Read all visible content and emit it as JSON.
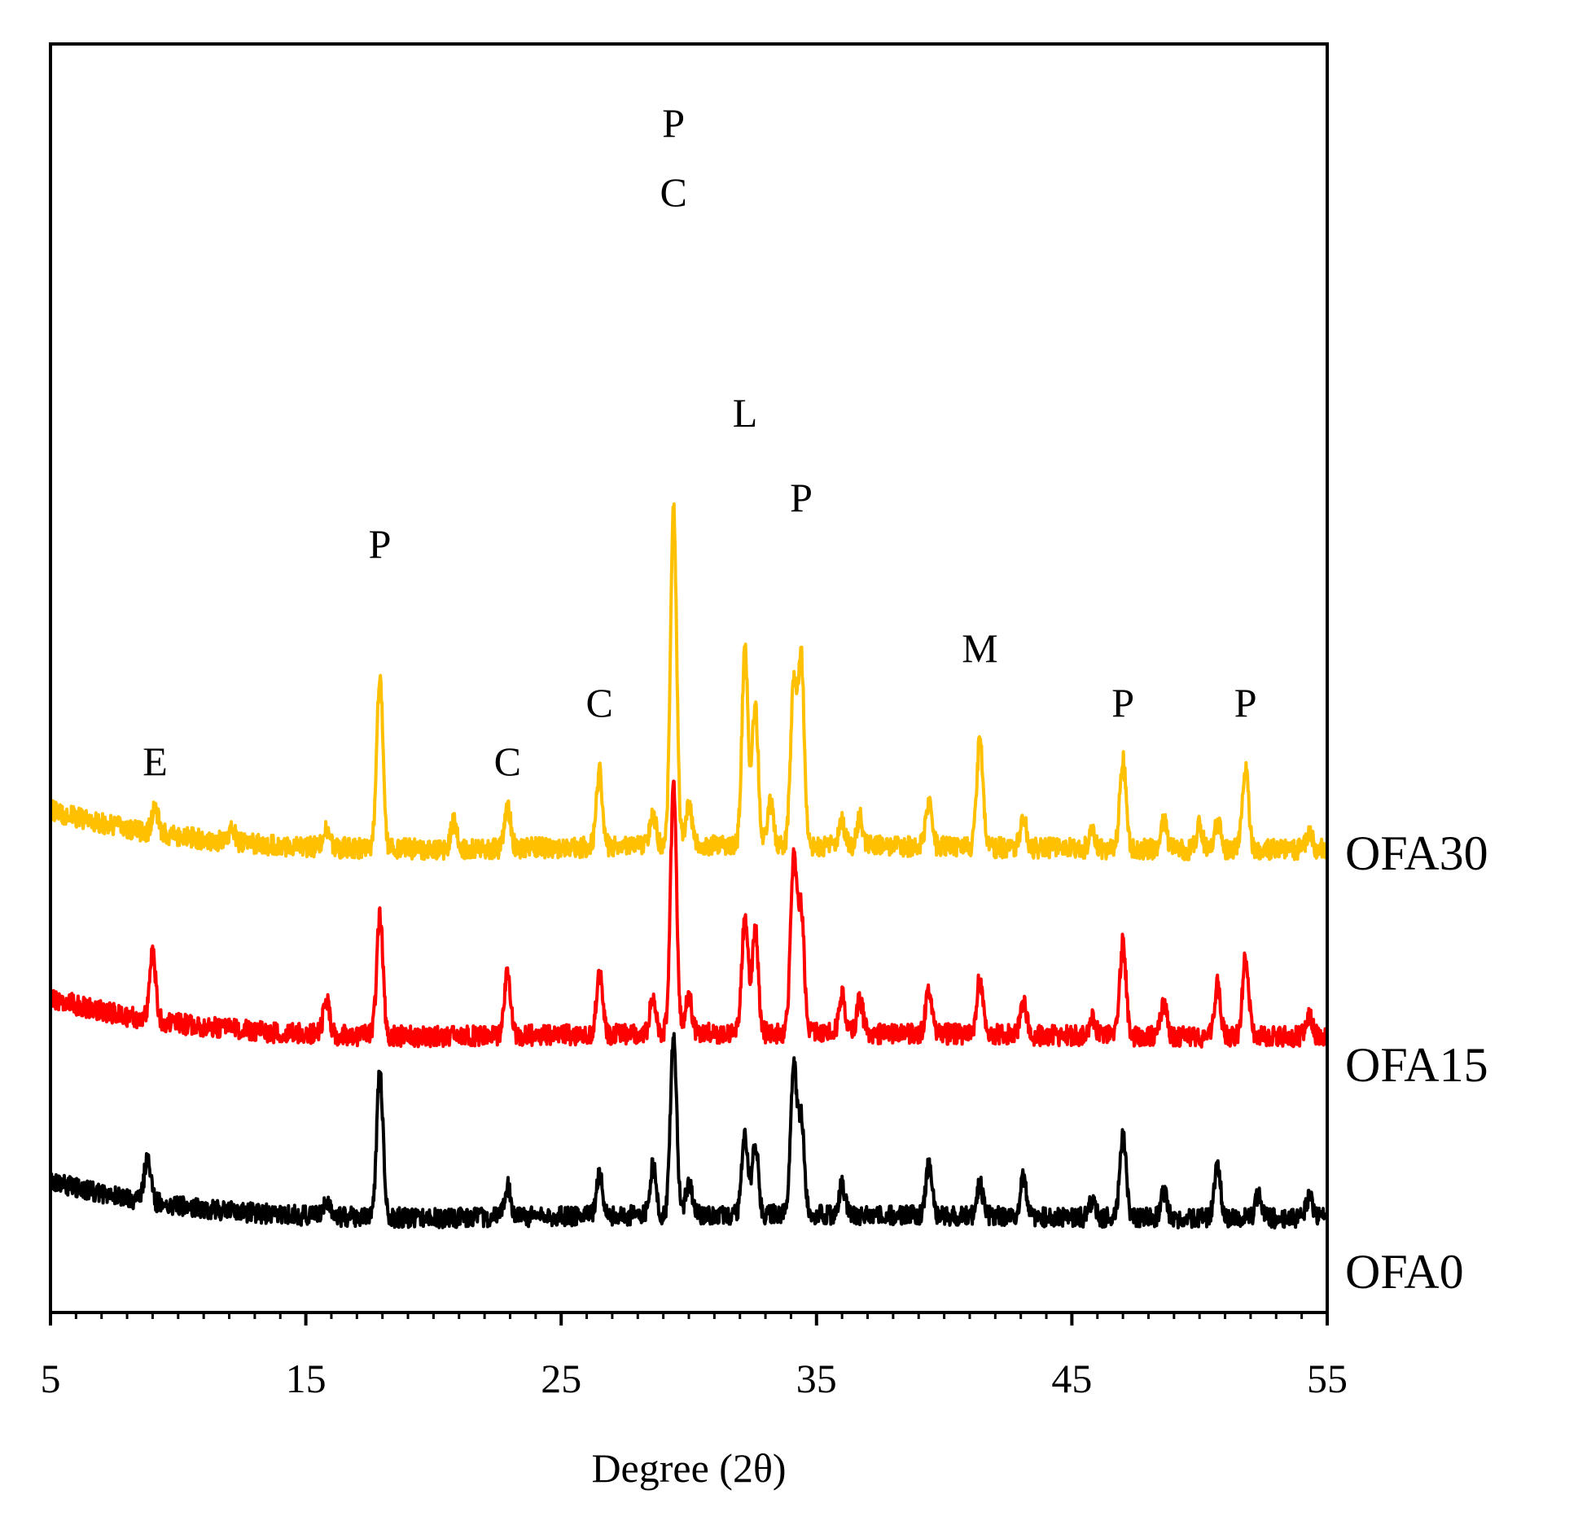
{
  "chart_data": {
    "type": "line",
    "title": "",
    "xlabel": "Degree (2θ)",
    "ylabel": "",
    "xlim": [
      5,
      55
    ],
    "xticks": [
      "5",
      "15",
      "25",
      "35",
      "45",
      "55"
    ],
    "y_axis_ticks_shown": false,
    "grid": false,
    "legend": "none (series names printed at right end of each trace)",
    "series": [
      {
        "name": "OFA30",
        "color": "#FFC000",
        "baseline": [
          [
            5,
            1.0
          ],
          [
            6,
            0.92
          ],
          [
            8,
            0.8
          ],
          [
            10,
            0.72
          ],
          [
            12,
            0.66
          ],
          [
            14,
            0.62
          ],
          [
            16,
            0.6
          ],
          [
            20,
            0.58
          ],
          [
            25,
            0.6
          ],
          [
            30,
            0.62
          ],
          [
            35,
            0.62
          ],
          [
            40,
            0.61
          ],
          [
            45,
            0.59
          ],
          [
            50,
            0.58
          ],
          [
            55,
            0.58
          ]
        ],
        "peaks": [
          [
            9.1,
            0.25
          ],
          [
            12.1,
            0.15
          ],
          [
            15.8,
            0.18
          ],
          [
            17.9,
            1.85
          ],
          [
            20.8,
            0.3
          ],
          [
            22.9,
            0.45
          ],
          [
            26.5,
            0.8
          ],
          [
            28.6,
            0.35
          ],
          [
            29.4,
            3.6
          ],
          [
            30.0,
            0.45
          ],
          [
            32.2,
            2.1
          ],
          [
            32.6,
            1.5
          ],
          [
            33.2,
            0.45
          ],
          [
            34.1,
            1.7
          ],
          [
            34.4,
            2.0
          ],
          [
            36.0,
            0.25
          ],
          [
            36.7,
            0.3
          ],
          [
            39.4,
            0.45
          ],
          [
            41.4,
            1.15
          ],
          [
            43.1,
            0.35
          ],
          [
            45.8,
            0.2
          ],
          [
            47.0,
            0.95
          ],
          [
            48.6,
            0.3
          ],
          [
            50.0,
            0.25
          ],
          [
            50.7,
            0.3
          ],
          [
            51.8,
            0.85
          ],
          [
            54.3,
            0.2
          ]
        ]
      },
      {
        "name": "OFA15",
        "color": "#FF0000",
        "baseline": [
          [
            5,
            1.0
          ],
          [
            6,
            0.92
          ],
          [
            8,
            0.8
          ],
          [
            10,
            0.72
          ],
          [
            12,
            0.66
          ],
          [
            14,
            0.62
          ],
          [
            16,
            0.6
          ],
          [
            20,
            0.58
          ],
          [
            25,
            0.6
          ],
          [
            30,
            0.62
          ],
          [
            35,
            0.62
          ],
          [
            40,
            0.61
          ],
          [
            45,
            0.59
          ],
          [
            50,
            0.58
          ],
          [
            55,
            0.58
          ]
        ],
        "peaks": [
          [
            9.0,
            0.7
          ],
          [
            15.8,
            0.38
          ],
          [
            17.9,
            1.3
          ],
          [
            22.9,
            0.65
          ],
          [
            26.5,
            0.65
          ],
          [
            28.6,
            0.4
          ],
          [
            29.4,
            2.65
          ],
          [
            30.0,
            0.4
          ],
          [
            32.2,
            1.25
          ],
          [
            32.6,
            1.1
          ],
          [
            34.1,
            1.85
          ],
          [
            34.4,
            1.3
          ],
          [
            36.0,
            0.4
          ],
          [
            36.7,
            0.35
          ],
          [
            39.4,
            0.5
          ],
          [
            41.4,
            0.6
          ],
          [
            43.1,
            0.35
          ],
          [
            45.8,
            0.2
          ],
          [
            47.0,
            1.0
          ],
          [
            48.6,
            0.35
          ],
          [
            50.7,
            0.55
          ],
          [
            51.8,
            0.85
          ],
          [
            54.3,
            0.25
          ]
        ]
      },
      {
        "name": "OFA0",
        "color": "#000000",
        "baseline": [
          [
            5,
            1.0
          ],
          [
            6,
            0.92
          ],
          [
            8,
            0.8
          ],
          [
            10,
            0.72
          ],
          [
            12,
            0.66
          ],
          [
            14,
            0.62
          ],
          [
            16,
            0.6
          ],
          [
            20,
            0.58
          ],
          [
            25,
            0.6
          ],
          [
            30,
            0.62
          ],
          [
            35,
            0.62
          ],
          [
            40,
            0.61
          ],
          [
            45,
            0.59
          ],
          [
            50,
            0.58
          ],
          [
            55,
            0.58
          ]
        ],
        "peaks": [
          [
            8.8,
            0.5
          ],
          [
            15.8,
            0.2
          ],
          [
            17.9,
            1.65
          ],
          [
            22.9,
            0.35
          ],
          [
            26.5,
            0.45
          ],
          [
            28.6,
            0.55
          ],
          [
            29.4,
            2.0
          ],
          [
            30.0,
            0.35
          ],
          [
            32.2,
            0.9
          ],
          [
            32.6,
            0.8
          ],
          [
            34.1,
            1.65
          ],
          [
            34.4,
            1.05
          ],
          [
            36.0,
            0.35
          ],
          [
            39.4,
            0.55
          ],
          [
            41.4,
            0.35
          ],
          [
            43.1,
            0.45
          ],
          [
            45.8,
            0.2
          ],
          [
            47.0,
            0.95
          ],
          [
            48.6,
            0.3
          ],
          [
            50.7,
            0.6
          ],
          [
            52.3,
            0.25
          ],
          [
            54.3,
            0.25
          ]
        ]
      }
    ],
    "peak_annotations": [
      {
        "label": "E",
        "x": 9.1
      },
      {
        "label": "P",
        "x": 17.9
      },
      {
        "label": "C",
        "x": 22.9
      },
      {
        "label": "C",
        "x": 26.5
      },
      {
        "label": "C",
        "x": 29.4
      },
      {
        "label": "P",
        "x": 29.4
      },
      {
        "label": "L",
        "x": 32.2
      },
      {
        "label": "P",
        "x": 34.4
      },
      {
        "label": "M",
        "x": 41.4
      },
      {
        "label": "P",
        "x": 47.0
      },
      {
        "label": "P",
        "x": 51.8
      }
    ]
  }
}
